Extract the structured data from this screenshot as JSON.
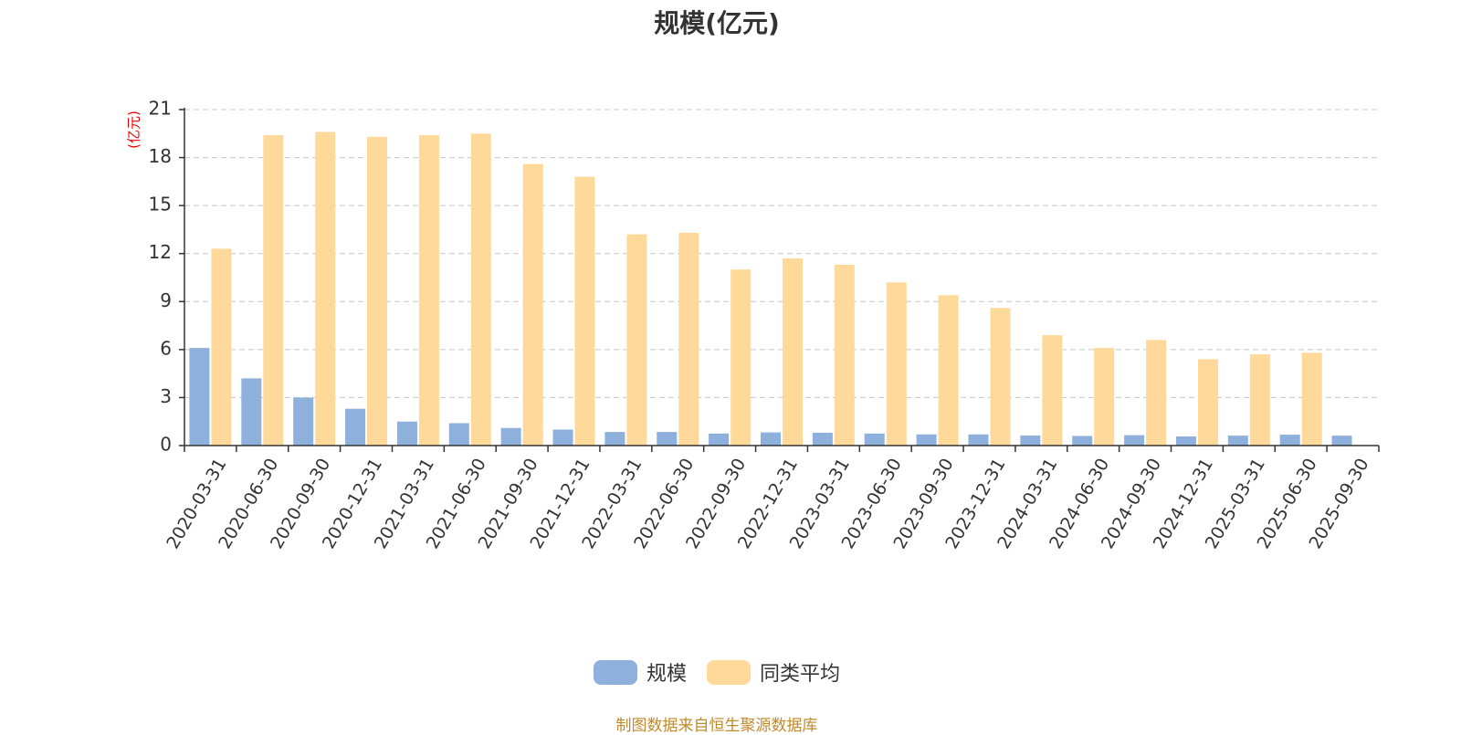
{
  "colors": {
    "scale": "#8eb0dd",
    "peer_average": "#ffd99a",
    "axis": "#333333",
    "grid": "#c8c8c8",
    "ylabel": "#ee0000"
  },
  "chart_data": {
    "type": "bar",
    "title": "规模(亿元)",
    "ylabel": "(亿元)",
    "xlabel": "",
    "ylim": [
      0,
      21
    ],
    "yticks": [
      0,
      3,
      6,
      9,
      12,
      15,
      18,
      21
    ],
    "grid": true,
    "legend_position": "bottom",
    "categories": [
      "2020-03-31",
      "2020-06-30",
      "2020-09-30",
      "2020-12-31",
      "2021-03-31",
      "2021-06-30",
      "2021-09-30",
      "2021-12-31",
      "2022-03-31",
      "2022-06-30",
      "2022-09-30",
      "2022-12-31",
      "2023-03-31",
      "2023-06-30",
      "2023-09-30",
      "2023-12-31",
      "2024-03-31",
      "2024-06-30",
      "2024-09-30",
      "2024-12-31",
      "2025-03-31",
      "2025-06-30",
      "2025-09-30"
    ],
    "series": [
      {
        "name": "规模",
        "values": [
          6.1,
          4.2,
          3.0,
          2.3,
          1.5,
          1.4,
          1.1,
          1.0,
          0.85,
          0.85,
          0.75,
          0.82,
          0.8,
          0.75,
          0.7,
          0.7,
          0.63,
          0.6,
          0.65,
          0.57,
          0.62,
          0.68,
          0.62
        ]
      },
      {
        "name": "同类平均",
        "values": [
          12.3,
          19.4,
          19.6,
          19.3,
          19.4,
          19.5,
          17.6,
          16.8,
          13.2,
          13.3,
          11.0,
          11.7,
          11.3,
          10.2,
          9.4,
          8.6,
          6.9,
          6.1,
          6.6,
          5.4,
          5.7,
          5.8,
          null
        ]
      }
    ]
  },
  "legend": {
    "item1": "规模",
    "item2": "同类平均"
  },
  "source_note": "制图数据来自恒生聚源数据库"
}
